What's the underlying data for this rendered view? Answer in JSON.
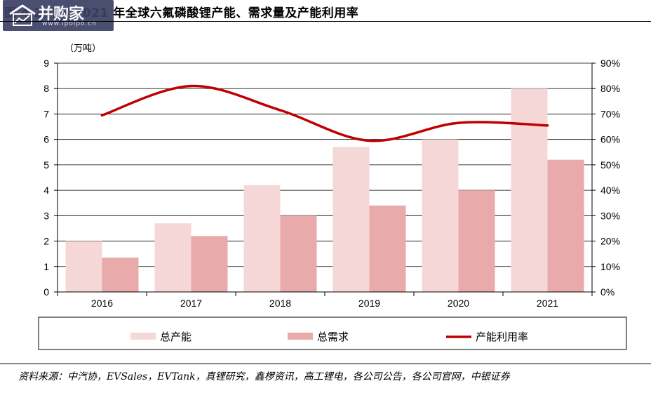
{
  "title": "图 4 2016-2021 年全球六氟磷酸锂产能、需求量及产能利用率",
  "watermark": {
    "brand": "并购家",
    "url": "www.ipoipo.cn"
  },
  "source": "资料来源：中汽协，EVSales，EVTank，真锂研究，鑫椤资讯，高工锂电，各公司公告，各公司官网，中银证券",
  "chart_data": {
    "type": "bar",
    "unit_label": "（万吨）",
    "categories": [
      "2016",
      "2017",
      "2018",
      "2019",
      "2020",
      "2021"
    ],
    "series": [
      {
        "name": "总产能",
        "type": "bar",
        "axis": "left",
        "color": "#f6d7d7",
        "values": [
          2.0,
          2.7,
          4.2,
          5.7,
          6.0,
          8.0
        ]
      },
      {
        "name": "总需求",
        "type": "bar",
        "axis": "left",
        "color": "#e8aaaa",
        "values": [
          1.35,
          2.2,
          3.0,
          3.4,
          4.0,
          5.2
        ]
      },
      {
        "name": "产能利用率",
        "type": "line",
        "axis": "right",
        "color": "#c00000",
        "values": [
          69.5,
          81,
          71.5,
          59.5,
          66.5,
          65.5
        ]
      }
    ],
    "y_left": {
      "min": 0,
      "max": 9,
      "step": 1,
      "ticks": [
        "0",
        "1",
        "2",
        "3",
        "4",
        "5",
        "6",
        "7",
        "8",
        "9"
      ]
    },
    "y_right": {
      "min": 0,
      "max": 90,
      "step": 10,
      "ticks": [
        "0%",
        "10%",
        "20%",
        "30%",
        "40%",
        "50%",
        "60%",
        "70%",
        "80%",
        "90%"
      ]
    },
    "grid": true,
    "legend_position": "bottom"
  }
}
